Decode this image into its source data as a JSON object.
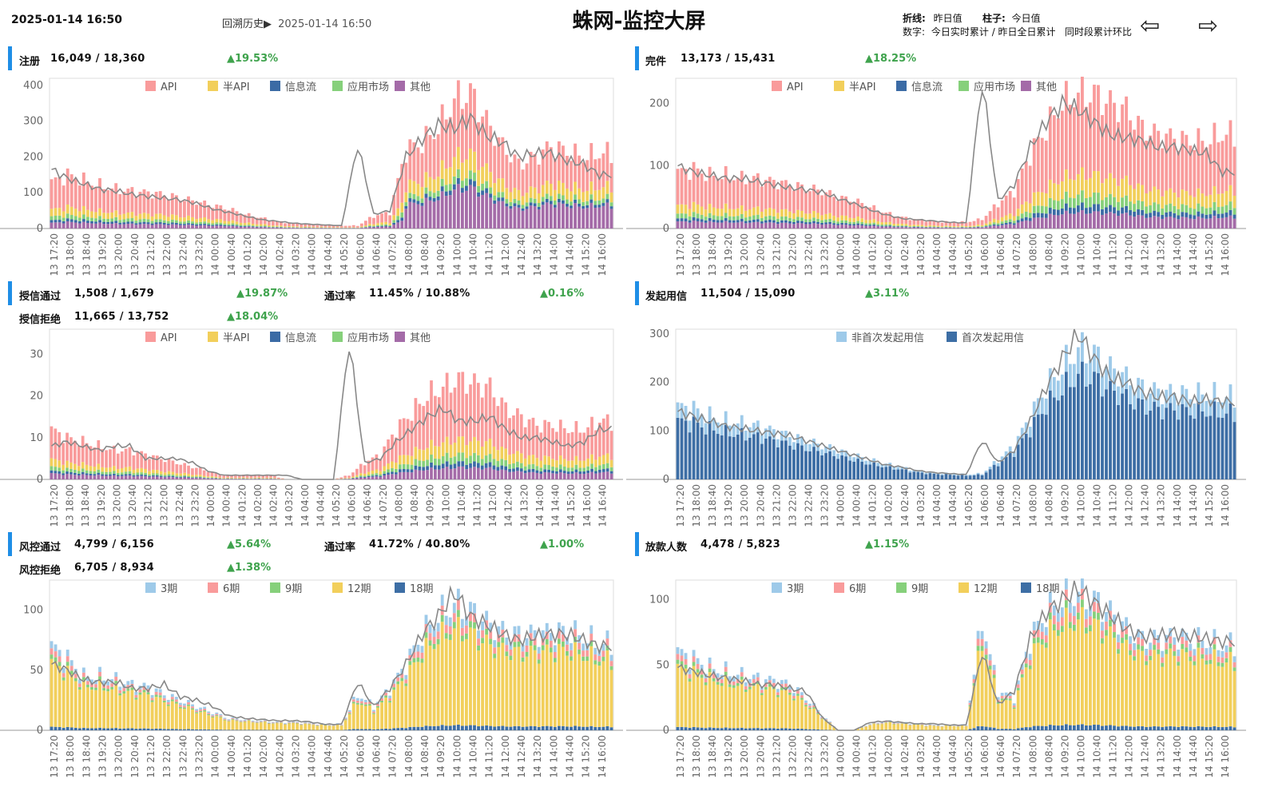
{
  "header": {
    "timestamp": "2025-01-14 16:50",
    "back_history_label": "回溯历史▶",
    "back_history_time": "2025-01-14 16:50",
    "title": "蛛网-监控大屏",
    "legend_line_key": "折线:",
    "legend_line_val": "昨日值",
    "legend_bar_key": "柱子:",
    "legend_bar_val": "今日值",
    "legend_num_key": "数字:",
    "legend_num_val": "今日实时累计 / 昨日全日累计   同时段累计环比",
    "prev_icon": "left-arrow-icon",
    "next_icon": "right-arrow-icon"
  },
  "stats": {
    "register": {
      "label": "注册",
      "value": "16,049 / 18,360",
      "change": "▲19.53%"
    },
    "complete": {
      "label": "完件",
      "value": "13,173 / 15,431",
      "change": "▲18.25%"
    },
    "credit_pass": {
      "label": "授信通过",
      "value": "1,508 / 1,679",
      "change": "▲19.87%",
      "rate_label": "通过率",
      "rate_value": "11.45% / 10.88%",
      "rate_change": "▲0.16%"
    },
    "credit_reject": {
      "label": "授信拒绝",
      "value": "11,665 / 13,752",
      "change": "▲18.04%"
    },
    "initiate_use": {
      "label": "发起用信",
      "value": "11,504 / 15,090",
      "change": "▲3.11%"
    },
    "risk_pass": {
      "label": "风控通过",
      "value": "4,799 / 6,156",
      "change": "▲5.64%",
      "rate_label": "通过率",
      "rate_value": "41.72% / 40.80%",
      "rate_change": "▲1.00%"
    },
    "risk_reject": {
      "label": "风控拒绝",
      "value": "6,705 / 8,934",
      "change": "▲1.38%"
    },
    "loan_users": {
      "label": "放款人数",
      "value": "4,478 / 5,823",
      "change": "▲1.15%"
    }
  },
  "colors": {
    "accent": "#1f8ee6",
    "up": "#3fa34d",
    "api": "#f99b9b",
    "half_api": "#f2cf5b",
    "info_flow": "#3b6ba5",
    "app_market": "#86d07b",
    "other": "#a46ba8",
    "non_first": "#9ecae9",
    "first": "#3d6ea5",
    "p3": "#9ecae9",
    "p6": "#f99b9b",
    "p9": "#86d07b",
    "p12": "#f2cf5b",
    "p18": "#3d6ea5",
    "line": "#888888"
  },
  "chart_data": [
    {
      "id": "register",
      "type": "bar",
      "stacked": true,
      "ylim": [
        0,
        420
      ],
      "yticks": [
        0,
        100,
        200,
        300,
        400
      ],
      "xticks": [
        "13 17:20",
        "13 18:00",
        "13 18:40",
        "13 19:20",
        "13 20:00",
        "13 20:40",
        "13 21:20",
        "13 22:00",
        "13 22:40",
        "13 23:20",
        "14 00:00",
        "14 00:40",
        "14 01:20",
        "14 02:00",
        "14 02:40",
        "14 03:20",
        "14 04:00",
        "14 04:40",
        "14 05:20",
        "14 06:00",
        "14 06:40",
        "14 07:20",
        "14 08:00",
        "14 08:40",
        "14 09:20",
        "14 10:00",
        "14 10:40",
        "14 11:20",
        "14 12:00",
        "14 12:40",
        "14 13:20",
        "14 14:00",
        "14 14:40",
        "14 15:20",
        "14 16:00"
      ],
      "legend": [
        "API",
        "半API",
        "信息流",
        "应用市场",
        "其他"
      ],
      "totals": [
        130,
        150,
        135,
        120,
        110,
        105,
        100,
        95,
        85,
        75,
        65,
        55,
        40,
        30,
        20,
        15,
        12,
        10,
        8,
        8,
        35,
        45,
        220,
        240,
        280,
        360,
        380,
        300,
        230,
        180,
        200,
        230,
        215,
        200,
        210
      ],
      "yesterday": [
        165,
        140,
        125,
        110,
        105,
        95,
        90,
        85,
        80,
        70,
        55,
        45,
        35,
        25,
        20,
        15,
        12,
        10,
        8,
        235,
        40,
        50,
        200,
        250,
        290,
        280,
        310,
        260,
        240,
        200,
        210,
        210,
        190,
        180,
        150
      ]
    },
    {
      "id": "complete",
      "type": "bar",
      "stacked": true,
      "ylim": [
        0,
        240
      ],
      "yticks": [
        0,
        100,
        200
      ],
      "xticks": [
        "13 17:20",
        "13 18:00",
        "13 18:40",
        "13 19:20",
        "13 20:00",
        "13 20:40",
        "13 21:20",
        "13 22:00",
        "13 22:40",
        "13 23:20",
        "14 00:00",
        "14 00:40",
        "14 01:20",
        "14 02:00",
        "14 02:40",
        "14 03:20",
        "14 04:00",
        "14 04:40",
        "14 05:20",
        "14 06:00",
        "14 06:40",
        "14 07:20",
        "14 08:00",
        "14 08:40",
        "14 09:20",
        "14 10:00",
        "14 10:40",
        "14 11:20",
        "14 12:00",
        "14 12:40",
        "14 13:20",
        "14 14:00",
        "14 14:40",
        "14 15:20",
        "14 16:00"
      ],
      "legend": [
        "API",
        "半API",
        "信息流",
        "应用市场",
        "其他"
      ],
      "totals": [
        90,
        95,
        85,
        85,
        80,
        80,
        75,
        70,
        65,
        60,
        50,
        45,
        35,
        25,
        18,
        14,
        12,
        10,
        10,
        15,
        40,
        60,
        120,
        160,
        200,
        215,
        215,
        200,
        190,
        160,
        150,
        145,
        140,
        140,
        150
      ],
      "yesterday": [
        100,
        90,
        85,
        80,
        80,
        75,
        70,
        65,
        62,
        58,
        48,
        40,
        30,
        22,
        16,
        14,
        12,
        10,
        9,
        235,
        45,
        70,
        130,
        170,
        200,
        190,
        170,
        150,
        145,
        140,
        130,
        130,
        125,
        120,
        90
      ]
    },
    {
      "id": "credit",
      "type": "bar",
      "stacked": true,
      "ylim": [
        0,
        36
      ],
      "yticks": [
        0,
        10,
        20,
        30
      ],
      "xticks": [
        "13 17:20",
        "13 18:00",
        "13 18:40",
        "13 19:20",
        "13 20:00",
        "13 20:40",
        "13 21:20",
        "13 22:00",
        "13 22:40",
        "13 23:20",
        "14 00:00",
        "14 00:40",
        "14 01:20",
        "14 02:00",
        "14 02:40",
        "14 03:20",
        "14 04:00",
        "14 04:40",
        "14 05:20",
        "14 06:00",
        "14 06:40",
        "14 07:20",
        "14 08:00",
        "14 08:40",
        "14 09:20",
        "14 10:00",
        "14 10:40",
        "14 11:20",
        "14 12:00",
        "14 12:40",
        "14 13:20",
        "14 14:00",
        "14 14:40",
        "14 15:20",
        "14 16:00",
        "14 16:40"
      ],
      "legend": [
        "API",
        "半API",
        "信息流",
        "应用市场",
        "其他"
      ],
      "totals": [
        12,
        10,
        9,
        8,
        7,
        7,
        6,
        5,
        4,
        3,
        2,
        1,
        1,
        1,
        1,
        0,
        0,
        0,
        0,
        1,
        4,
        6,
        12,
        16,
        20,
        22,
        24,
        23,
        22,
        17,
        15,
        13,
        13,
        12,
        12,
        14
      ],
      "yesterday": [
        8,
        9,
        8,
        7,
        8,
        8,
        5,
        5,
        5,
        4,
        2,
        1,
        1,
        1,
        1,
        1,
        0,
        0,
        0,
        33,
        4,
        5,
        9,
        12,
        15,
        17,
        14,
        14,
        15,
        12,
        10,
        10,
        9,
        8,
        9,
        12
      ]
    },
    {
      "id": "initiate",
      "type": "bar",
      "stacked": true,
      "ylim": [
        0,
        310
      ],
      "yticks": [
        0,
        100,
        200,
        300
      ],
      "xticks": [
        "13 17:20",
        "13 18:00",
        "13 18:40",
        "13 19:20",
        "13 20:00",
        "13 20:40",
        "13 21:20",
        "13 22:00",
        "13 22:40",
        "13 23:20",
        "14 00:00",
        "14 00:40",
        "14 01:20",
        "14 02:00",
        "14 02:40",
        "14 03:20",
        "14 04:00",
        "14 04:40",
        "14 05:20",
        "14 06:00",
        "14 06:40",
        "14 07:20",
        "14 08:00",
        "14 08:40",
        "14 09:20",
        "14 10:00",
        "14 10:40",
        "14 11:20",
        "14 12:00",
        "14 12:40",
        "14 13:20",
        "14 14:00",
        "14 14:40",
        "14 15:20",
        "14 16:00"
      ],
      "legend": [
        "非首次发起用信",
        "首次发起用信"
      ],
      "totals": [
        150,
        145,
        130,
        120,
        115,
        110,
        100,
        90,
        80,
        70,
        60,
        50,
        40,
        32,
        25,
        18,
        14,
        12,
        10,
        12,
        40,
        70,
        130,
        190,
        230,
        270,
        260,
        230,
        210,
        190,
        180,
        180,
        175,
        175,
        170
      ],
      "yesterday": [
        140,
        130,
        120,
        110,
        105,
        100,
        95,
        90,
        80,
        70,
        60,
        50,
        40,
        30,
        25,
        18,
        14,
        12,
        10,
        80,
        35,
        60,
        120,
        190,
        250,
        300,
        250,
        210,
        200,
        180,
        170,
        170,
        160,
        165,
        160
      ]
    },
    {
      "id": "risk",
      "type": "bar",
      "stacked": true,
      "ylim": [
        0,
        125
      ],
      "yticks": [
        0,
        50,
        100
      ],
      "xticks": [
        "13 17:20",
        "13 18:00",
        "13 18:40",
        "13 19:20",
        "13 20:00",
        "13 20:40",
        "13 21:20",
        "13 22:00",
        "13 22:40",
        "13 23:20",
        "14 00:00",
        "14 00:40",
        "14 01:20",
        "14 02:00",
        "14 02:40",
        "14 03:20",
        "14 04:00",
        "14 04:40",
        "14 05:20",
        "14 06:00",
        "14 06:40",
        "14 07:20",
        "14 08:00",
        "14 08:40",
        "14 09:20",
        "14 10:00",
        "14 10:40",
        "14 11:20",
        "14 12:00",
        "14 12:40",
        "14 13:20",
        "14 14:00",
        "14 14:40",
        "14 15:20",
        "14 16:00"
      ],
      "legend": [
        "3期",
        "6期",
        "9期",
        "12期",
        "18期"
      ],
      "totals": [
        70,
        60,
        45,
        45,
        42,
        38,
        36,
        30,
        25,
        20,
        15,
        10,
        9,
        8,
        7,
        7,
        6,
        5,
        5,
        30,
        20,
        35,
        55,
        80,
        95,
        105,
        100,
        90,
        82,
        80,
        80,
        82,
        82,
        78,
        72
      ],
      "yesterday": [
        55,
        50,
        42,
        40,
        40,
        35,
        35,
        38,
        28,
        25,
        20,
        12,
        10,
        9,
        8,
        8,
        7,
        5,
        5,
        40,
        20,
        35,
        55,
        80,
        95,
        115,
        95,
        88,
        80,
        75,
        78,
        80,
        80,
        75,
        70
      ]
    },
    {
      "id": "loan",
      "type": "bar",
      "stacked": true,
      "ylim": [
        0,
        115
      ],
      "yticks": [
        0,
        50,
        100
      ],
      "xticks": [
        "13 17:20",
        "13 18:00",
        "13 18:40",
        "13 19:20",
        "13 20:00",
        "13 20:40",
        "13 21:20",
        "13 22:00",
        "13 22:40",
        "13 23:20",
        "14 00:00",
        "14 00:40",
        "14 01:20",
        "14 02:00",
        "14 02:40",
        "14 03:20",
        "14 04:00",
        "14 04:40",
        "14 05:20",
        "14 06:00",
        "14 06:40",
        "14 07:20",
        "14 08:00",
        "14 08:40",
        "14 09:20",
        "14 10:00",
        "14 10:40",
        "14 11:20",
        "14 12:00",
        "14 12:40",
        "14 13:20",
        "14 14:00",
        "14 14:40",
        "14 15:20",
        "14 16:00"
      ],
      "legend": [
        "3期",
        "6期",
        "9期",
        "12期",
        "18期"
      ],
      "totals": [
        60,
        55,
        48,
        45,
        42,
        40,
        38,
        35,
        25,
        12,
        0,
        0,
        5,
        7,
        6,
        5,
        4,
        4,
        4,
        85,
        30,
        25,
        70,
        90,
        100,
        105,
        100,
        90,
        78,
        70,
        70,
        72,
        70,
        68,
        65
      ],
      "yesterday": [
        48,
        45,
        42,
        40,
        38,
        35,
        35,
        32,
        30,
        10,
        0,
        0,
        6,
        7,
        6,
        5,
        5,
        4,
        4,
        60,
        20,
        30,
        70,
        90,
        100,
        108,
        98,
        88,
        78,
        72,
        72,
        75,
        72,
        70,
        68
      ]
    }
  ]
}
